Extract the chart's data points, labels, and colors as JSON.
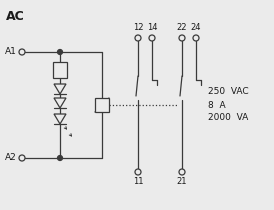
{
  "title": "AC",
  "background_color": "#ebebeb",
  "line_color": "#3a3a3a",
  "text_color": "#1a1a1a",
  "specs": [
    "250  VAC",
    "8  A",
    "2000  VA"
  ],
  "top_labels": [
    "12",
    "14",
    "22",
    "24"
  ],
  "bottom_labels": [
    "11",
    "21"
  ],
  "terminal_labels": [
    "A1",
    "A2"
  ],
  "figw": 2.74,
  "figh": 2.1,
  "dpi": 100
}
